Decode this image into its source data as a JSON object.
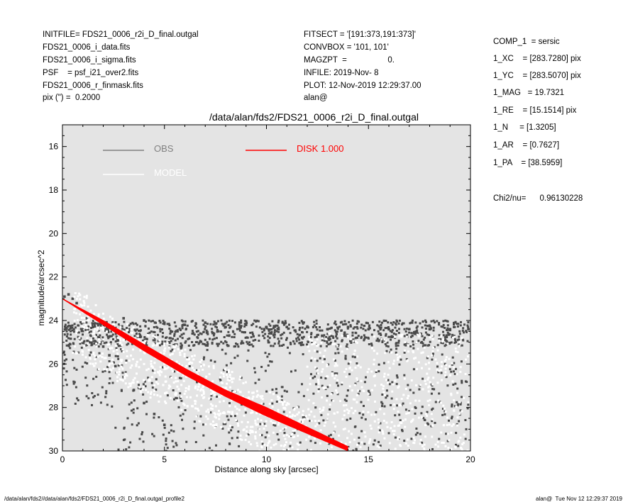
{
  "header": {
    "left": [
      "INITFILE= FDS21_0006_r2i_D_final.outgal",
      "FDS21_0006_i_data.fits",
      "FDS21_0006_i_sigma.fits",
      "PSF    = psf_i21_over2.fits",
      "FDS21_0006_r_finmask.fits",
      "pix (\") =  0.2000"
    ],
    "middle": [
      "FITSECT = '[191:373,191:373]'",
      "CONVBOX = '101, 101'",
      "MAGZPT  =                  0.",
      "INFILE: 2019-Nov- 8",
      "PLOT: 12-Nov-2019 12:29:37.00",
      "alan@"
    ],
    "right": [
      "COMP_1  = sersic",
      "1_XC    = [283.7280] pix",
      "1_YC    = [283.5070] pix",
      "1_MAG   = 19.7321",
      "1_RE    = [15.1514] pix",
      "1_N     = [1.3205]",
      "1_AR    = [0.7627]",
      "1_PA    = [38.5959]"
    ],
    "chi2": "Chi2/nu=      0.96130228"
  },
  "footer": {
    "left": "/data/alan/fds2//data/alan/fds2/FDS21_0006_r2i_D_final.outgal_profile2",
    "right": "alan@  Tue Nov 12 12:29:37 2019"
  },
  "colors": {
    "plot_background": "#e4e4e4",
    "obs_points": "#4a4a4a",
    "model_points": "#ffffff",
    "disk": "#ff0000"
  },
  "chart_data": {
    "type": "scatter",
    "title": "/data/alan/fds2/FDS21_0006_r2i_D_final.outgal",
    "xlabel": "Distance along sky [arcsec]",
    "ylabel": "magnitude/arcsec^2",
    "xlim": [
      0,
      20
    ],
    "ylim": [
      30,
      15
    ],
    "y_inverted": true,
    "x_ticks": [
      0,
      5,
      10,
      15,
      20
    ],
    "y_ticks": [
      16,
      18,
      20,
      22,
      24,
      26,
      28,
      30
    ],
    "legend_placement": "top-left",
    "legend": [
      {
        "name": "OBS",
        "color": "#808080"
      },
      {
        "name": "MODEL",
        "color": "#ffffff"
      },
      {
        "name": "DISK  1.000",
        "color": "#ff0000"
      }
    ],
    "series": [
      {
        "name": "OBS",
        "kind": "points",
        "color": "#4a4a4a",
        "points": [
          [
            0.1,
            22.9
          ],
          [
            0.3,
            22.8
          ],
          [
            0.5,
            23.0
          ],
          [
            0.7,
            23.2
          ],
          [
            1.0,
            23.6
          ],
          [
            1.2,
            23.9
          ],
          [
            1.5,
            24.3
          ],
          [
            1.8,
            24.8
          ],
          [
            2.0,
            25.2
          ],
          [
            2.3,
            25.6
          ],
          [
            2.6,
            26.1
          ],
          [
            3.0,
            26.6
          ],
          [
            3.5,
            27.2
          ],
          [
            4.0,
            27.8
          ],
          [
            4.5,
            28.3
          ],
          [
            5.0,
            28.8
          ],
          [
            2.0,
            24.1
          ],
          [
            3.0,
            23.9
          ],
          [
            4.0,
            24.0
          ],
          [
            5.0,
            24.1
          ],
          [
            6.0,
            24.2
          ],
          [
            7.0,
            24.1
          ],
          [
            8.0,
            24.3
          ],
          [
            9.0,
            24.2
          ],
          [
            10.0,
            24.3
          ],
          [
            11.0,
            24.3
          ],
          [
            12.0,
            24.3
          ],
          [
            13.0,
            24.4
          ],
          [
            14.0,
            24.3
          ],
          [
            15.0,
            24.4
          ],
          [
            16.0,
            24.4
          ],
          [
            17.0,
            24.4
          ],
          [
            18.0,
            24.4
          ],
          [
            19.0,
            24.4
          ],
          [
            19.9,
            24.4
          ]
        ]
      },
      {
        "name": "MODEL",
        "kind": "points",
        "color": "#ffffff",
        "points": [
          [
            1.0,
            23.6
          ],
          [
            2.0,
            24.4
          ],
          [
            3.0,
            24.9
          ],
          [
            4.0,
            25.3
          ],
          [
            5.0,
            25.8
          ],
          [
            6.0,
            26.2
          ],
          [
            7.0,
            26.7
          ],
          [
            8.0,
            27.1
          ],
          [
            9.0,
            27.6
          ],
          [
            10.0,
            28.1
          ],
          [
            11.0,
            28.6
          ],
          [
            12.0,
            29.1
          ],
          [
            13.0,
            29.6
          ],
          [
            14.0,
            29.9
          ]
        ]
      },
      {
        "name": "DISK  1.000",
        "kind": "band",
        "color": "#ff0000",
        "x": [
          0.0,
          2.0,
          4.0,
          6.0,
          8.0,
          10.0,
          12.0,
          14.0
        ],
        "y_lower": [
          23.0,
          24.2,
          25.4,
          26.5,
          27.5,
          28.4,
          29.2,
          30.0
        ],
        "y_upper": [
          23.0,
          24.0,
          25.1,
          26.2,
          27.2,
          28.0,
          28.9,
          29.8
        ]
      }
    ]
  }
}
